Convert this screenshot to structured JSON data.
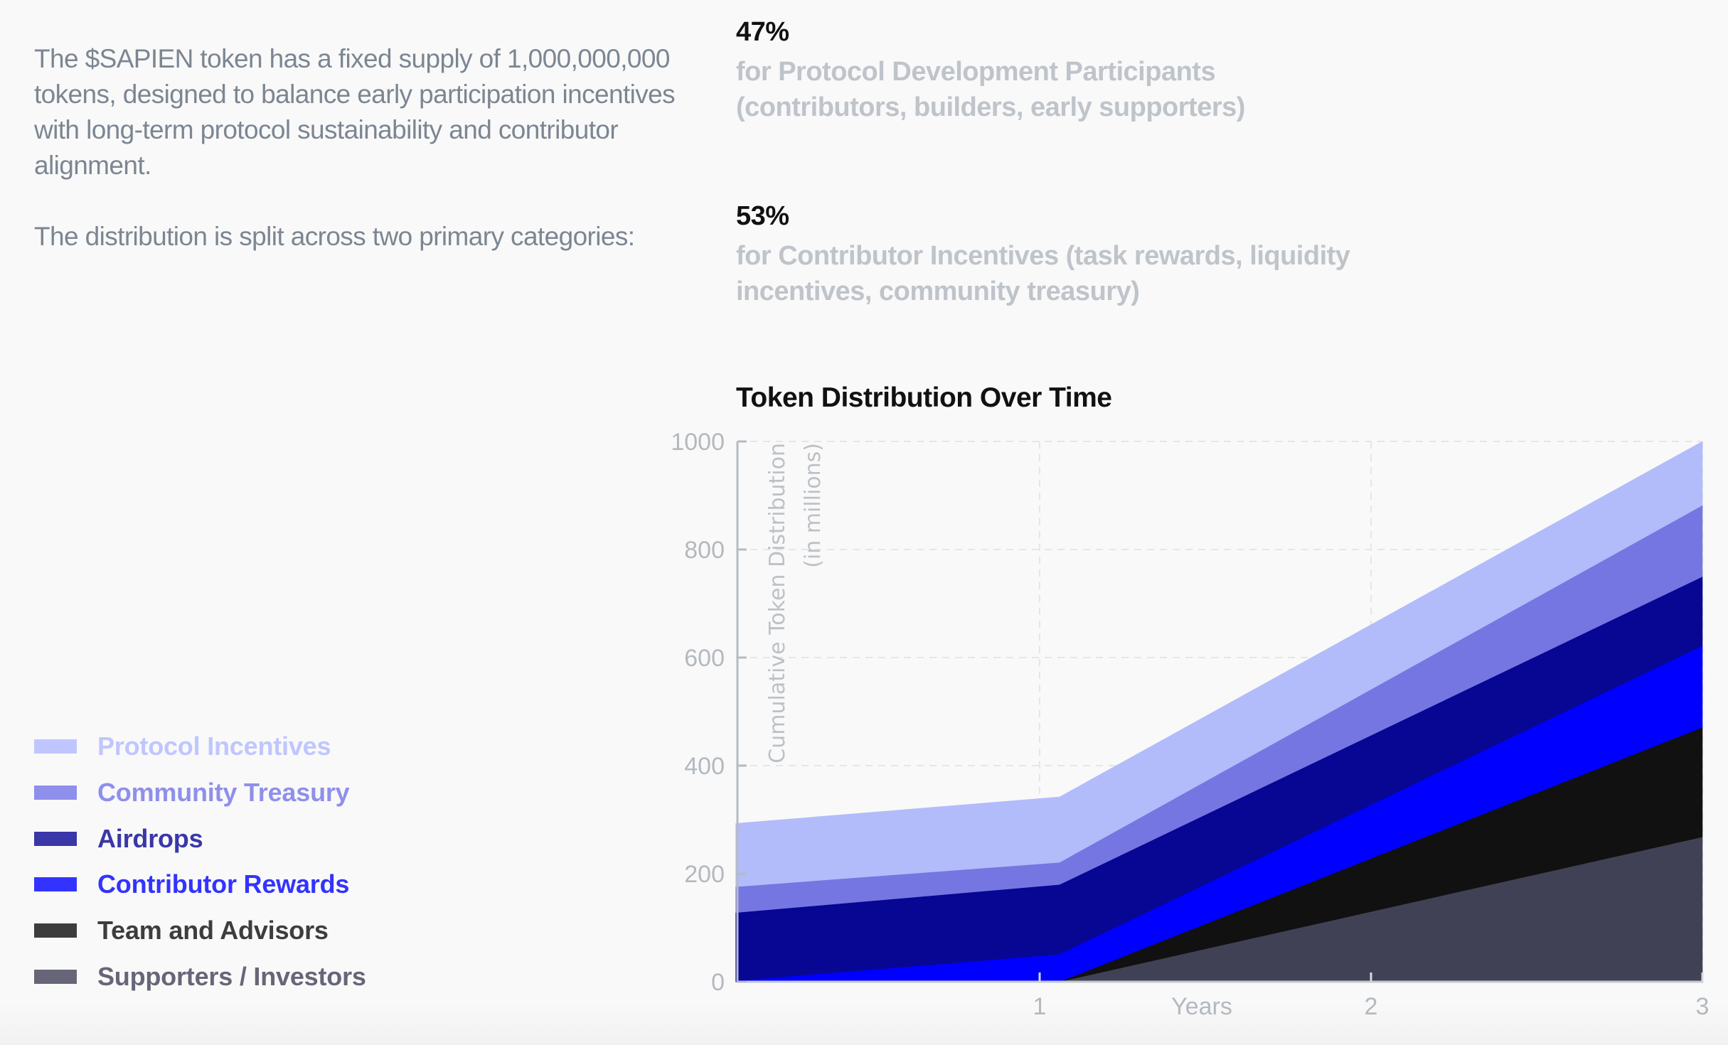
{
  "intro": {
    "paragraphs": [
      "The $SAPIEN token has a fixed supply of 1,000,000,000 tokens, designed to balance early participation incentives with long-term protocol sustainability and contributor alignment.",
      "The distribution is split across two primary categories:"
    ]
  },
  "stats": [
    {
      "value": "47%",
      "description": "for Protocol Development Participants (contributors, builders, early supporters)"
    },
    {
      "value": "53%",
      "description": "for Contributor Incentives (task rewards, liquidity incentives, community treasury)"
    }
  ],
  "legend": [
    {
      "label": "Protocol Incentives",
      "swatch": "#bfc6ff",
      "text_color": "#bfc6ff"
    },
    {
      "label": "Community Treasury",
      "swatch": "#8f8fec",
      "text_color": "#8f8fec"
    },
    {
      "label": "Airdrops",
      "swatch": "#3a37a8",
      "text_color": "#3a37a8"
    },
    {
      "label": "Contributor Rewards",
      "swatch": "#3333ff",
      "text_color": "#3333ff"
    },
    {
      "label": "Team and Advisors",
      "swatch": "#3d3d3d",
      "text_color": "#3d3d3d"
    },
    {
      "label": "Supporters / Investors",
      "swatch": "#666678",
      "text_color": "#666678"
    }
  ],
  "chart_data": {
    "type": "area",
    "stacked": true,
    "title": "Token Distribution Over Time",
    "xlabel": "Years",
    "ylabel": "Cumulative Token Distribution",
    "ylabel_sub": "(in millions)",
    "x": [
      0.083,
      1.06,
      3
    ],
    "xlim": [
      0.083,
      3
    ],
    "ylim": [
      0,
      1000
    ],
    "xticks": [
      1,
      2,
      3
    ],
    "xtick_labels": [
      "1",
      "2",
      "3"
    ],
    "yticks": [
      0,
      200,
      400,
      600,
      800,
      1000
    ],
    "ytick_labels": [
      "0",
      "200",
      "400",
      "600",
      "800",
      "1000"
    ],
    "grid": true,
    "legend_position": "left",
    "series": [
      {
        "name": "Supporters / Investors",
        "color": "#414156",
        "values": [
          0,
          0,
          268
        ]
      },
      {
        "name": "Team and Advisors",
        "color": "#111111",
        "values": [
          0,
          0,
          203
        ]
      },
      {
        "name": "Contributor Rewards",
        "color": "#0000ff",
        "values": [
          2,
          51,
          151
        ]
      },
      {
        "name": "Airdrops",
        "color": "#070794",
        "values": [
          126,
          129,
          128
        ]
      },
      {
        "name": "Community Treasury",
        "color": "#7676e2",
        "values": [
          48,
          41,
          132
        ]
      },
      {
        "name": "Protocol Incentives",
        "color": "#b2bcfb",
        "values": [
          117,
          121,
          118
        ]
      }
    ]
  }
}
